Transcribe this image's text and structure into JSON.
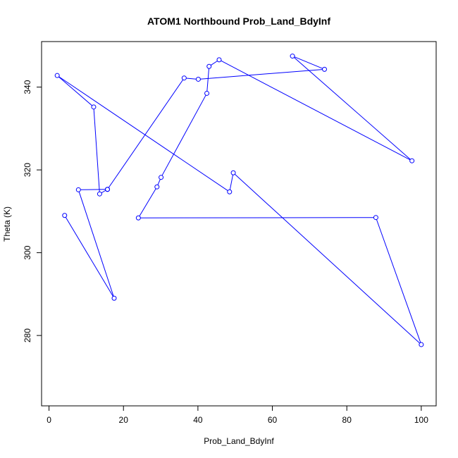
{
  "chart_data": {
    "type": "line",
    "title": "ATOM1 Northbound Prob_Land_BdyInf",
    "xlabel": "Prob_Land_BdyInf",
    "ylabel": "Theta (K)",
    "xlim": [
      -2,
      104
    ],
    "ylim": [
      263,
      351
    ],
    "xticks": [
      0,
      20,
      40,
      60,
      80,
      100
    ],
    "yticks": [
      280,
      300,
      320,
      340
    ],
    "grid": false,
    "series": [
      {
        "color": "#0000ff",
        "marker": "open-circle",
        "points": [
          {
            "x": 4.2,
            "y": 309.0
          },
          {
            "x": 17.5,
            "y": 289.0
          },
          {
            "x": 7.9,
            "y": 315.2
          },
          {
            "x": 15.7,
            "y": 315.3
          },
          {
            "x": 36.3,
            "y": 342.2
          },
          {
            "x": 40.1,
            "y": 341.9
          },
          {
            "x": 74.0,
            "y": 344.3
          },
          {
            "x": 65.4,
            "y": 347.5
          },
          {
            "x": 97.5,
            "y": 322.2
          },
          {
            "x": 45.7,
            "y": 346.6
          },
          {
            "x": 43.0,
            "y": 345.0
          },
          {
            "x": 42.4,
            "y": 338.5
          },
          {
            "x": 30.1,
            "y": 318.2
          },
          {
            "x": 29.0,
            "y": 315.9
          },
          {
            "x": 24.0,
            "y": 308.4
          },
          {
            "x": 87.8,
            "y": 308.5
          },
          {
            "x": 100.0,
            "y": 277.8
          },
          {
            "x": 49.5,
            "y": 319.3
          },
          {
            "x": 48.5,
            "y": 314.7
          },
          {
            "x": 2.2,
            "y": 342.8
          },
          {
            "x": 12.0,
            "y": 335.2
          },
          {
            "x": 13.6,
            "y": 314.2
          },
          {
            "x": 15.7,
            "y": 315.3
          }
        ]
      }
    ]
  }
}
